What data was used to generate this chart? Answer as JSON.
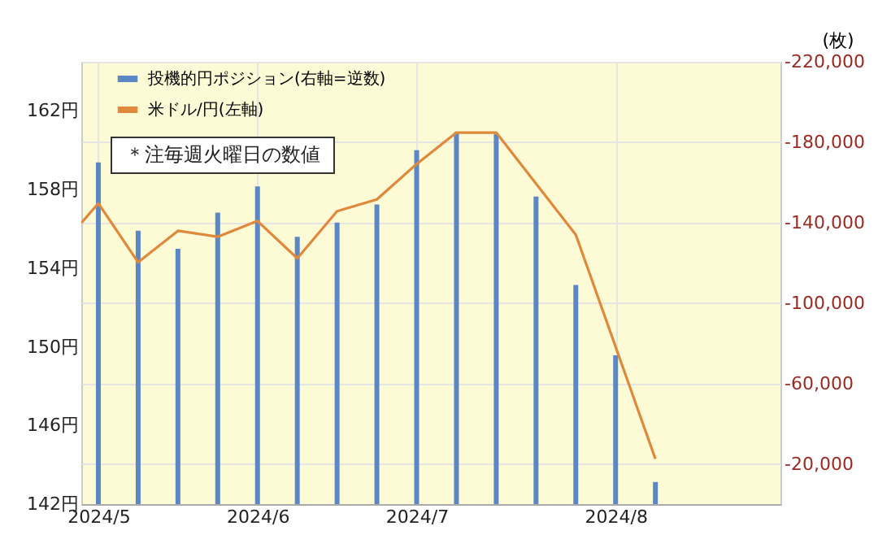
{
  "chart_data": {
    "type": "bar",
    "y2label": "(枚)",
    "x": [
      "2024-05-07",
      "2024-05-14",
      "2024-05-21",
      "2024-05-28",
      "2024-06-04",
      "2024-06-11",
      "2024-06-18",
      "2024-06-25",
      "2024-07-02",
      "2024-07-09",
      "2024-07-16",
      "2024-07-23",
      "2024-07-30",
      "2024-08-06",
      "2024-08-13"
    ],
    "xlim": [
      "2024-05-04",
      "2024-09-04"
    ],
    "xticks": [
      {
        "value": "2024-05-07",
        "label": "2024/5"
      },
      {
        "value": "2024-06-04",
        "label": "2024/6"
      },
      {
        "value": "2024-07-02",
        "label": "2024/7"
      },
      {
        "value": "2024-08-06",
        "label": "2024/8"
      }
    ],
    "series": [
      {
        "name": "投機的円ポジション(右軸=逆数)",
        "axis": "y2",
        "color": "#5b87c4",
        "values": [
          -170000,
          -136000,
          -127000,
          -145000,
          -158000,
          -133000,
          -140000,
          -149000,
          -176000,
          -185000,
          -184000,
          -153000,
          -109000,
          -74000,
          -11000
        ]
      },
      {
        "name": "米ドル/円(左軸)",
        "type": "line",
        "color": "#e0883c",
        "x": [
          "2024-05-04",
          "2024-05-07",
          "2024-05-14",
          "2024-05-21",
          "2024-05-28",
          "2024-06-04",
          "2024-06-11",
          "2024-06-18",
          "2024-06-25",
          "2024-07-02",
          "2024-07-09",
          "2024-07-16",
          "2024-07-30",
          "2024-08-13"
        ],
        "values": [
          156.3,
          157.3,
          154.3,
          155.9,
          155.6,
          156.4,
          154.5,
          156.9,
          157.5,
          159.3,
          160.9,
          160.9,
          155.7,
          144.3
        ]
      }
    ],
    "ylim": [
      142,
      164.5
    ],
    "yticks": [
      {
        "value": 142,
        "label": "142円"
      },
      {
        "value": 146,
        "label": "146円"
      },
      {
        "value": 150,
        "label": "150円"
      },
      {
        "value": 154,
        "label": "154円"
      },
      {
        "value": 158,
        "label": "158円"
      },
      {
        "value": 162,
        "label": "162円"
      }
    ],
    "y2lim": [
      0,
      -220000
    ],
    "y2ticks": [
      {
        "value": -20000,
        "label": "-20,000"
      },
      {
        "value": -60000,
        "label": "-60,000"
      },
      {
        "value": -100000,
        "label": "-100,000"
      },
      {
        "value": -140000,
        "label": "-140,000"
      },
      {
        "value": -180000,
        "label": "-180,000"
      },
      {
        "value": -220000,
        "label": "-220,000"
      }
    ],
    "grid": true,
    "legend": "top left",
    "annotations": [
      "＊注毎週火曜日の数値"
    ]
  }
}
